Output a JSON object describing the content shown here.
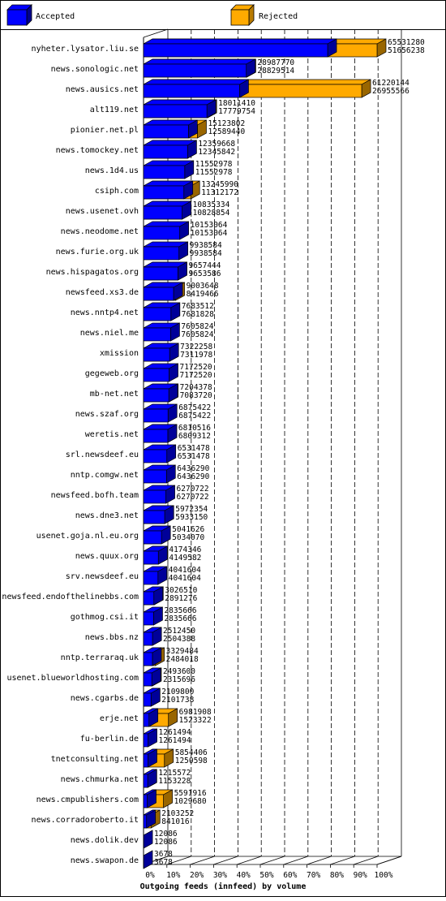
{
  "legend": {
    "accepted_label": "Accepted",
    "rejected_label": "Rejected",
    "accepted_color": "#0000FF",
    "rejected_color": "#FFAA00"
  },
  "chart_data": {
    "type": "bar",
    "orientation": "horizontal",
    "stacked": false,
    "title": "Outgoing feeds (innfeed) by volume",
    "xlabel": "",
    "ylabel": "",
    "x_ticks": [
      "0%",
      "10%",
      "20%",
      "30%",
      "40%",
      "50%",
      "60%",
      "70%",
      "80%",
      "90%",
      "100%"
    ],
    "xlim": [
      0,
      100
    ],
    "scale_max": 65531280,
    "grid": true,
    "legend_position": "top",
    "categories": [
      "nyheter.lysator.liu.se",
      "news.sonologic.net",
      "news.ausics.net",
      "alt119.net",
      "pionier.net.pl",
      "news.tomockey.net",
      "news.1d4.us",
      "csiph.com",
      "news.usenet.ovh",
      "news.neodome.net",
      "news.furie.org.uk",
      "news.hispagatos.org",
      "newsfeed.xs3.de",
      "news.nntp4.net",
      "news.niel.me",
      "xmission",
      "gegeweb.org",
      "mb-net.net",
      "news.szaf.org",
      "weretis.net",
      "srl.newsdeef.eu",
      "nntp.comgw.net",
      "newsfeed.bofh.team",
      "news.dne3.net",
      "usenet.goja.nl.eu.org",
      "news.quux.org",
      "srv.newsdeef.eu",
      "newsfeed.endofthelinebbs.com",
      "gothmog.csi.it",
      "news.bbs.nz",
      "nntp.terraraq.uk",
      "usenet.blueworldhosting.com",
      "news.cgarbs.de",
      "erje.net",
      "fu-berlin.de",
      "tnetconsulting.net",
      "news.chmurka.net",
      "news.cmpublishers.com",
      "news.corradoroberto.it",
      "news.dolik.dev",
      "news.swapon.de"
    ],
    "series": [
      {
        "name": "Accepted",
        "values": [
          65531280,
          28987770,
          61220144,
          18011410,
          15123802,
          12359668,
          11552978,
          13245990,
          10835334,
          10153064,
          9938584,
          9657444,
          9003648,
          7683512,
          7605824,
          7322258,
          7172520,
          7204378,
          6875422,
          6810516,
          6531478,
          6436290,
          6270722,
          5972354,
          5041626,
          4174346,
          4041604,
          3026510,
          2835666,
          2512450,
          3329484,
          2493600,
          2109800,
          6981908,
          1261494,
          5854406,
          1215572,
          5591916,
          2103252,
          12086,
          3678
        ]
      },
      {
        "name": "Rejected",
        "values": [
          51656238,
          28829514,
          26955566,
          17779754,
          12589440,
          12345842,
          11552978,
          11312172,
          10828854,
          10153064,
          9938584,
          9653586,
          8419466,
          7681828,
          7605824,
          7311978,
          7172520,
          7083720,
          6875422,
          6809312,
          6531478,
          6436290,
          6270722,
          5933150,
          5034070,
          4149582,
          4041604,
          2891276,
          2835666,
          2504388,
          2484018,
          2315696,
          2101738,
          1523322,
          1261494,
          1250598,
          1153228,
          1029680,
          841016,
          12086,
          3678
        ]
      }
    ]
  }
}
